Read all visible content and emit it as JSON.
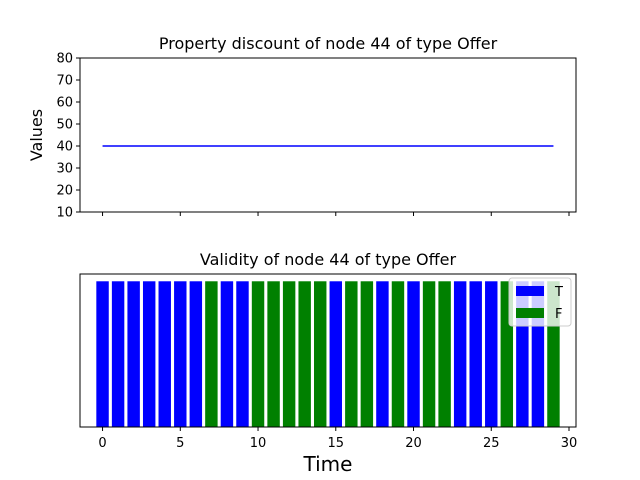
{
  "chart_data": [
    {
      "type": "line",
      "title": "Property discount of node 44 of type Offer",
      "ylabel": "Values",
      "xlabel": "",
      "xlim": [
        -1.45,
        30.45
      ],
      "ylim": [
        10,
        80
      ],
      "yticks": [
        10,
        20,
        30,
        40,
        50,
        60,
        70,
        80
      ],
      "xticks": [
        0,
        5,
        10,
        15,
        20,
        25,
        30
      ],
      "x_tick_labels_visible": false,
      "series": [
        {
          "color": "#0000ff",
          "x": [
            0,
            29
          ],
          "values": [
            40,
            40
          ]
        }
      ]
    },
    {
      "type": "bar",
      "title": "Validity of node 44 of type Offer",
      "xlabel": "Time",
      "xlim": [
        -1.45,
        30.45
      ],
      "xticks": [
        0,
        5,
        10,
        15,
        20,
        25,
        30
      ],
      "x_tick_labels": [
        "0",
        "5",
        "10",
        "15",
        "20",
        "25",
        "30"
      ],
      "yticks_visible": false,
      "legend": {
        "position": "top-right",
        "entries": [
          {
            "label": "T",
            "color": "#0000ff"
          },
          {
            "label": "F",
            "color": "#008000"
          }
        ]
      },
      "categories": [
        0,
        1,
        2,
        3,
        4,
        5,
        6,
        7,
        8,
        9,
        10,
        11,
        12,
        13,
        14,
        15,
        16,
        17,
        18,
        19,
        20,
        21,
        22,
        23,
        24,
        25,
        26,
        27,
        28,
        29
      ],
      "states": [
        "T",
        "T",
        "T",
        "T",
        "T",
        "T",
        "T",
        "F",
        "T",
        "T",
        "F",
        "F",
        "F",
        "F",
        "F",
        "T",
        "F",
        "F",
        "T",
        "F",
        "T",
        "F",
        "F",
        "T",
        "T",
        "T",
        "F",
        "T",
        "T",
        "F"
      ],
      "values": [
        1,
        1,
        1,
        1,
        1,
        1,
        1,
        1,
        1,
        1,
        1,
        1,
        1,
        1,
        1,
        1,
        1,
        1,
        1,
        1,
        1,
        1,
        1,
        1,
        1,
        1,
        1,
        1,
        1,
        1
      ]
    }
  ]
}
